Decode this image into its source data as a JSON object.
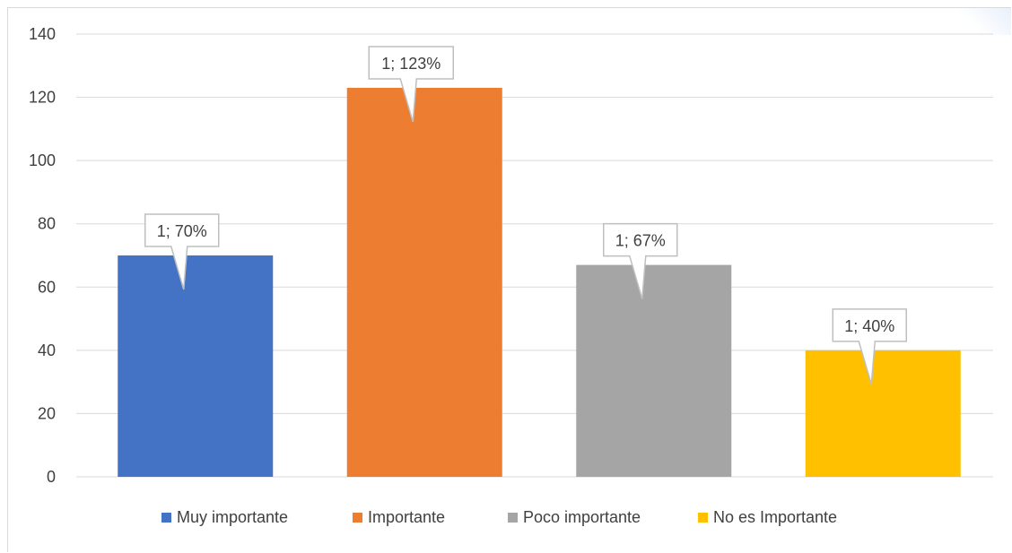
{
  "chart_data": {
    "type": "bar",
    "categories": [
      "Muy importante",
      "Importante",
      "Poco importante",
      "No es Importante"
    ],
    "values": [
      70,
      123,
      67,
      40
    ],
    "data_labels": [
      "1; 70%",
      "1; 123%",
      "1; 67%",
      "1; 40%"
    ],
    "colors": [
      "#4472c4",
      "#ed7d31",
      "#a5a5a5",
      "#ffc000"
    ],
    "ylim": [
      0,
      140
    ],
    "yticks": [
      0,
      20,
      40,
      60,
      80,
      100,
      120,
      140
    ],
    "ytick_labels": [
      "0",
      "20",
      "40",
      "60",
      "80",
      "100",
      "120",
      "140"
    ],
    "grid": true,
    "legend_position": "bottom",
    "gridline_color": "#d9d9d9",
    "callout_border_color": "#bfbfbf"
  }
}
